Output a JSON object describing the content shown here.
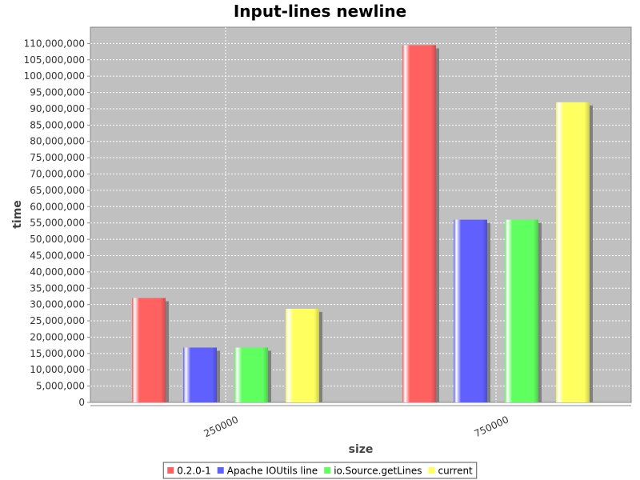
{
  "chart_data": {
    "type": "bar",
    "title": "Input-lines newline",
    "xlabel": "size",
    "ylabel": "time",
    "categories": [
      "250000",
      "750000"
    ],
    "series": [
      {
        "name": "0.2.0-1",
        "color": "#ff6060",
        "values": [
          32000000,
          109500000
        ]
      },
      {
        "name": "Apache IOUtils line",
        "color": "#6060ff",
        "values": [
          16800000,
          56000000
        ]
      },
      {
        "name": "io.Source.getLines",
        "color": "#60ff60",
        "values": [
          16800000,
          56000000
        ]
      },
      {
        "name": "current",
        "color": "#ffff60",
        "values": [
          28700000,
          92000000
        ]
      }
    ],
    "ylim": [
      0,
      115000000
    ],
    "yticks": [
      0,
      5000000,
      10000000,
      15000000,
      20000000,
      25000000,
      30000000,
      35000000,
      40000000,
      45000000,
      50000000,
      55000000,
      60000000,
      65000000,
      70000000,
      75000000,
      80000000,
      85000000,
      90000000,
      95000000,
      100000000,
      105000000,
      110000000
    ],
    "grid": true,
    "legend": "bottom",
    "plot_background": "#c0c0c0"
  }
}
